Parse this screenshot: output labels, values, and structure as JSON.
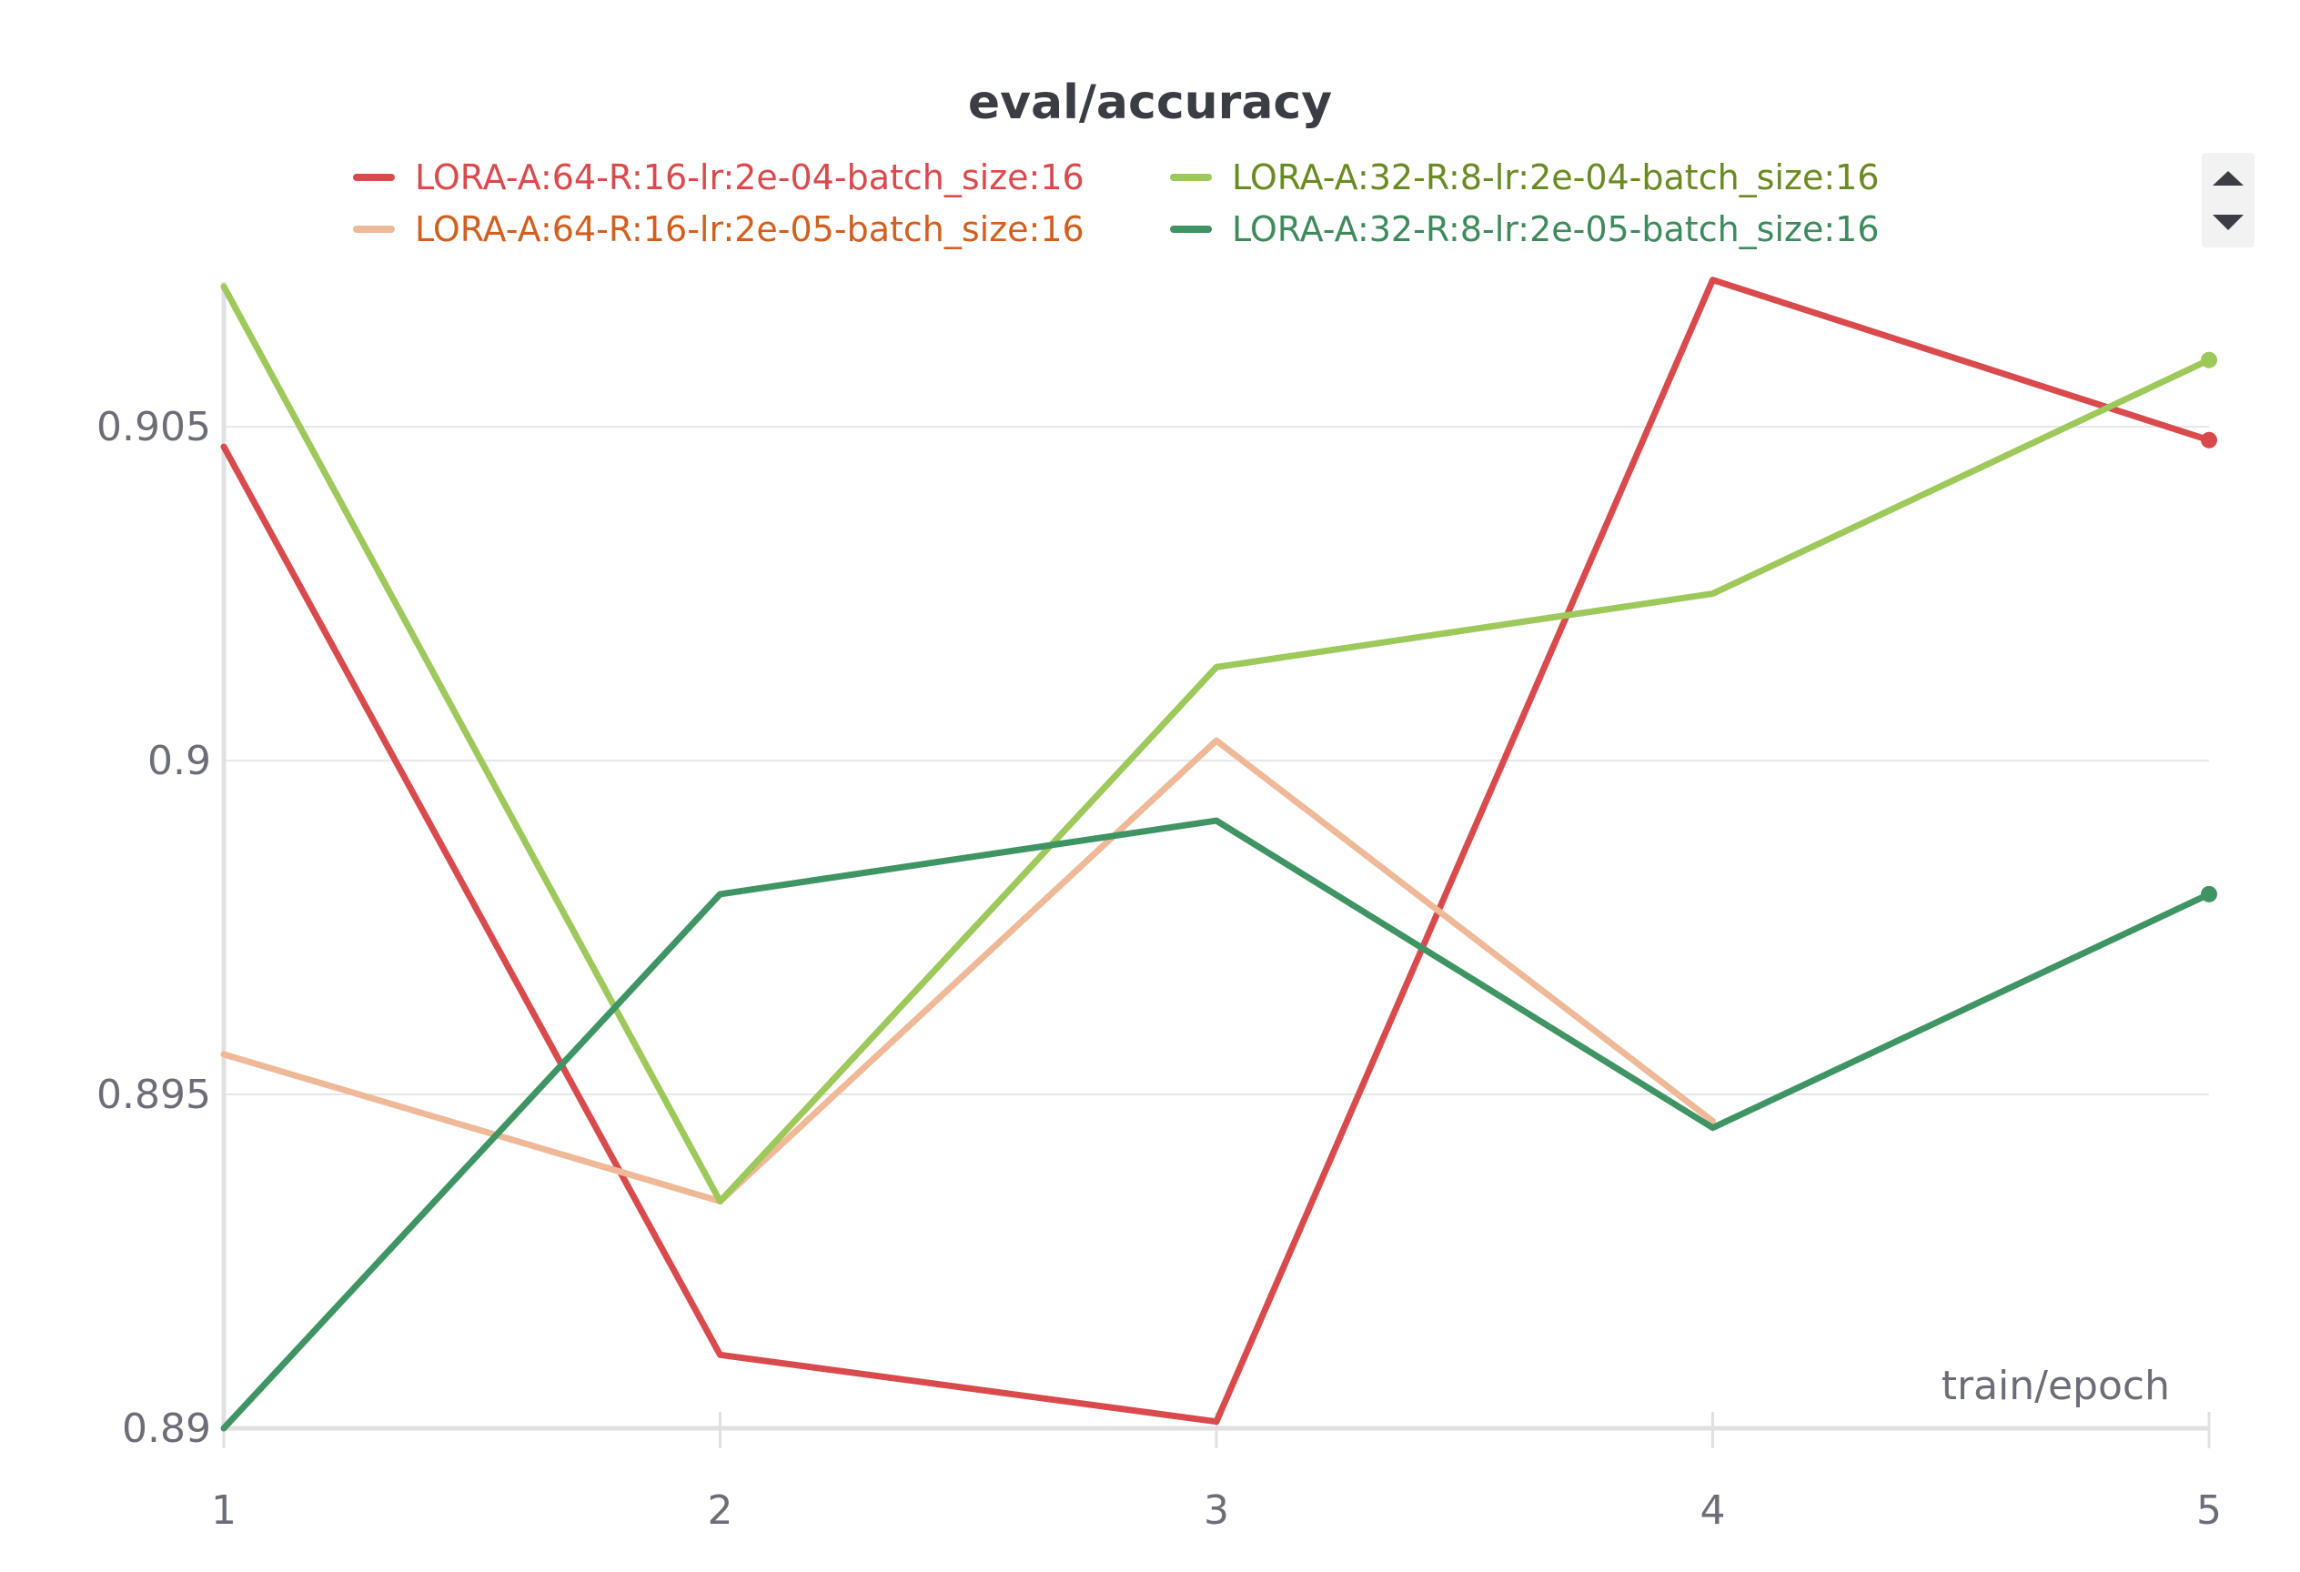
{
  "chart_data": {
    "type": "line",
    "title": "eval/accuracy",
    "xlabel": "train/epoch",
    "ylabel": "",
    "x": [
      1,
      2,
      3,
      4,
      5
    ],
    "x_ticks": [
      "1",
      "2",
      "3",
      "4",
      "5"
    ],
    "xlim": [
      1,
      5
    ],
    "ylim": [
      0.89,
      0.9071
    ],
    "y_ticks": [
      0.89,
      0.895,
      0.9,
      0.905
    ],
    "y_tick_labels": [
      "0.89",
      "0.895",
      "0.9",
      "0.905"
    ],
    "grid": true,
    "legend_placement": "top",
    "series": [
      {
        "name": "LORA-A:64-R:16-lr:2e-04-batch_size:16",
        "color": "#d94a4d",
        "legend_text_color": "#d94a4d",
        "values": [
          0.9047,
          0.8911,
          0.8901,
          0.9072,
          0.9048
        ],
        "end_marker": true
      },
      {
        "name": "LORA-A:64-R:16-lr:2e-05-batch_size:16",
        "color": "#efb998",
        "legend_text_color": "#d35f1e",
        "values": [
          0.8956,
          0.8934,
          0.9003,
          0.8946,
          null
        ],
        "end_marker": false
      },
      {
        "name": "LORA-A:32-R:8-lr:2e-04-batch_size:16",
        "color": "#9dc85a",
        "legend_text_color": "#6a8a22",
        "values": [
          0.9071,
          0.8934,
          0.9014,
          0.9025,
          0.906
        ],
        "end_marker": true
      },
      {
        "name": "LORA-A:32-R:8-lr:2e-05-batch_size:16",
        "color": "#3e9462",
        "legend_text_color": "#3e8a5c",
        "values": [
          0.89,
          0.898,
          0.8991,
          0.8945,
          0.898
        ],
        "end_marker": true
      }
    ]
  },
  "legend": {
    "scroll_up_icon": "triangle-up-icon",
    "scroll_down_icon": "triangle-down-icon"
  }
}
